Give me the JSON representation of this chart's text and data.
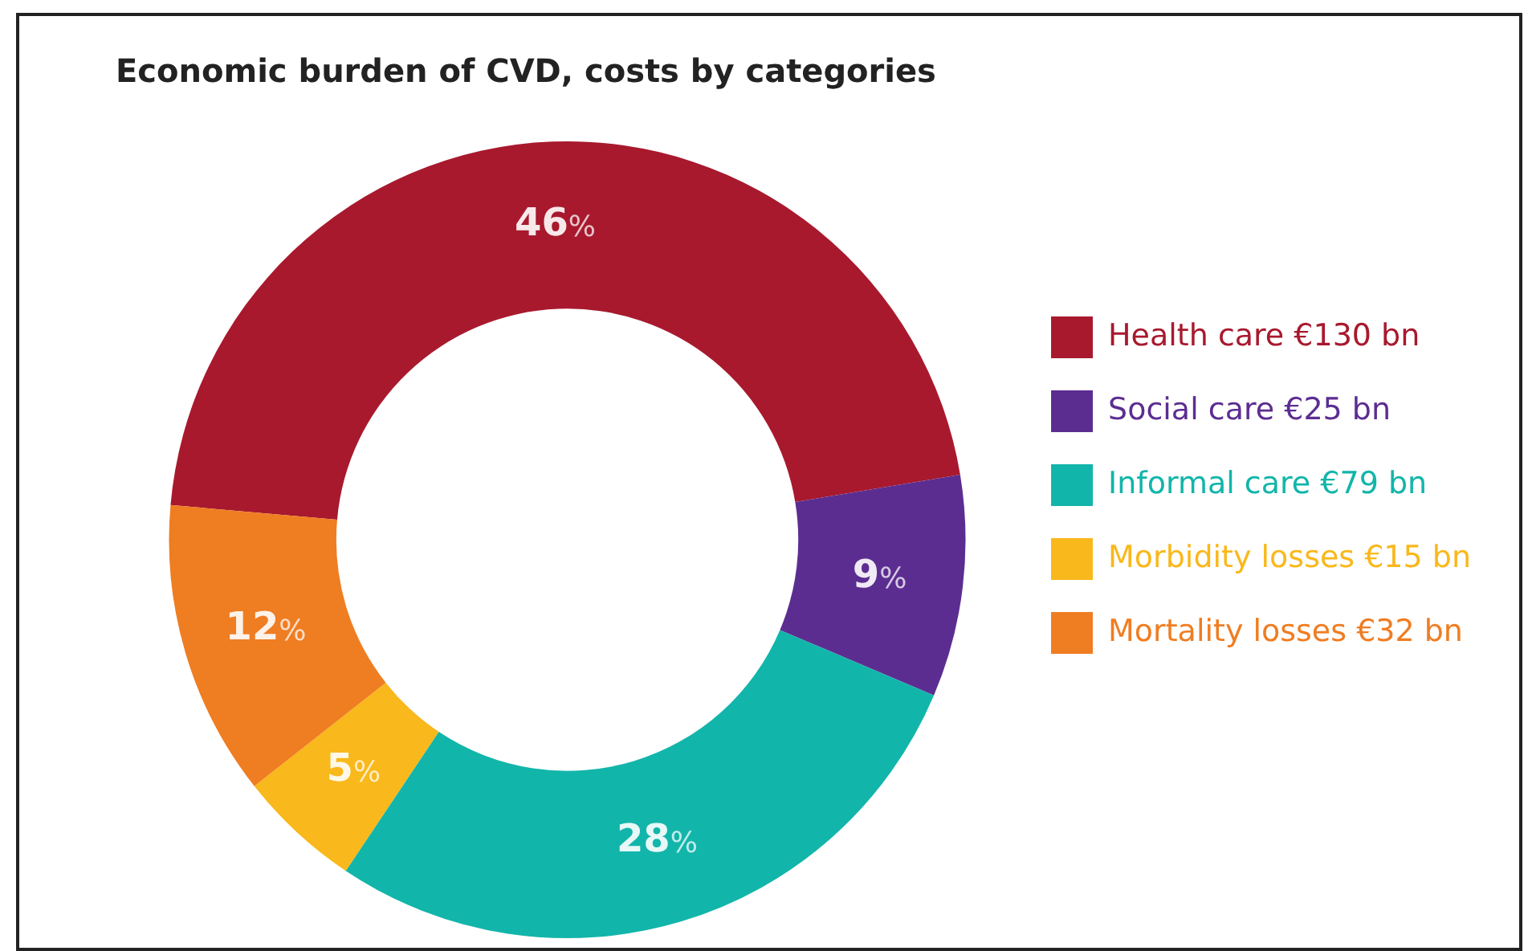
{
  "chart_data": {
    "type": "donut",
    "title": "Economic burden of CVD, costs by categories",
    "categories": [
      "Health care €130 bn",
      "Social care €25 bn",
      "Informal care €79 bn",
      "Morbidity losses €15 bn",
      "Mortality losses €32 bn"
    ],
    "values": [
      46,
      9,
      28,
      5,
      12
    ],
    "colors": [
      "#a8192e",
      "#5c2d91",
      "#12b5aa",
      "#f9b81b",
      "#ef7d22"
    ],
    "value_labels": [
      "46%",
      "9%",
      "28%",
      "5%",
      "12%"
    ],
    "legend": "right"
  }
}
